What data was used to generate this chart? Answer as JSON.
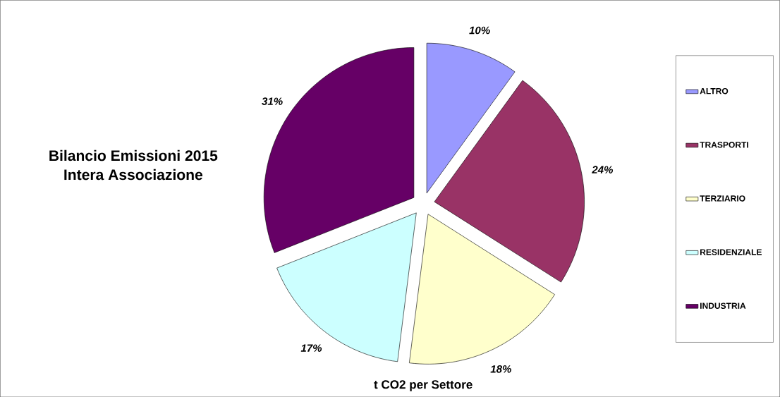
{
  "chart_data": {
    "type": "pie",
    "title": "Bilancio Emissioni 2015",
    "subtitle": "Intera Associazione",
    "categories": [
      "ALTRO",
      "TRASPORTI",
      "TERZIARIO",
      "RESIDENZIALE",
      "INDUSTRIA"
    ],
    "values": [
      10,
      24,
      18,
      17,
      31
    ],
    "value_labels": [
      "10%",
      "24%",
      "18%",
      "17%",
      "31%"
    ],
    "colors": [
      "#9999ff",
      "#993366",
      "#ffffcc",
      "#ccffff",
      "#660066"
    ],
    "annotations": [
      "t CO2 per Settore"
    ],
    "legend": "right"
  }
}
